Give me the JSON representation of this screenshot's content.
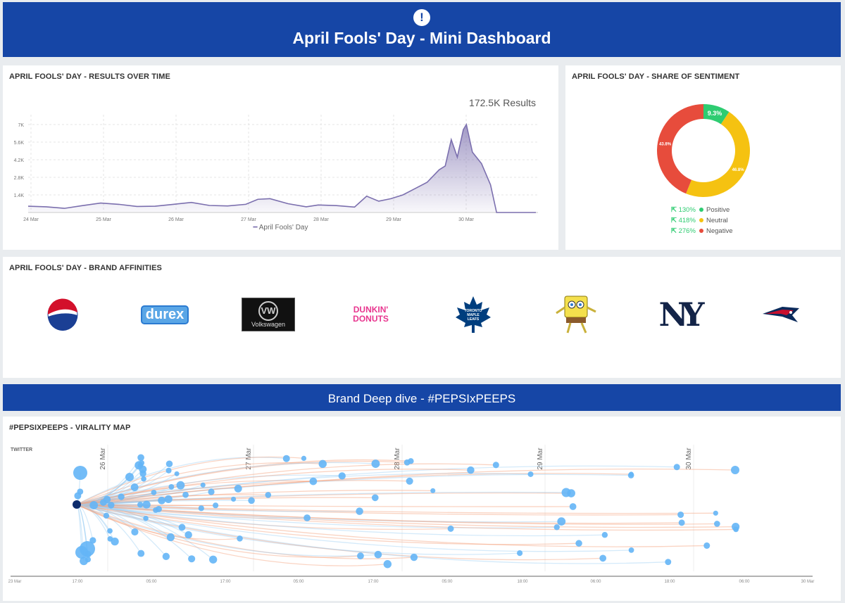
{
  "header": {
    "title": "April Fools' Day - Mini Dashboard",
    "icon": "exclamation-icon"
  },
  "results_panel": {
    "title": "APRIL FOOLS' DAY - RESULTS OVER TIME",
    "total": "172.5K Results",
    "legend": "April Fools' Day"
  },
  "chart_data": [
    {
      "type": "area",
      "title": "APRIL FOOLS' DAY - RESULTS OVER TIME",
      "y_ticks": [
        "1.4K",
        "2.8K",
        "4.2K",
        "5.6K",
        "7K"
      ],
      "x_ticks": [
        "24 Mar",
        "25 Mar",
        "26 Mar",
        "27 Mar",
        "28 Mar",
        "29 Mar",
        "30 Mar"
      ],
      "ylim": [
        0,
        7000
      ],
      "grid": true,
      "legend_position": "bottom",
      "color": "#7b6fae",
      "series": [
        {
          "name": "April Fools' Day",
          "points": [
            [
              "24 Mar 00:00",
              500
            ],
            [
              "24 Mar 06:00",
              450
            ],
            [
              "24 Mar 12:00",
              330
            ],
            [
              "24 Mar 18:00",
              550
            ],
            [
              "25 Mar 00:00",
              750
            ],
            [
              "25 Mar 06:00",
              650
            ],
            [
              "25 Mar 12:00",
              480
            ],
            [
              "25 Mar 18:00",
              500
            ],
            [
              "26 Mar 00:00",
              650
            ],
            [
              "26 Mar 06:00",
              800
            ],
            [
              "26 Mar 12:00",
              560
            ],
            [
              "26 Mar 18:00",
              520
            ],
            [
              "27 Mar 00:00",
              650
            ],
            [
              "27 Mar 04:00",
              1050
            ],
            [
              "27 Mar 08:00",
              1100
            ],
            [
              "27 Mar 14:00",
              700
            ],
            [
              "27 Mar 20:00",
              450
            ],
            [
              "28 Mar 00:00",
              600
            ],
            [
              "28 Mar 06:00",
              550
            ],
            [
              "28 Mar 12:00",
              430
            ],
            [
              "28 Mar 16:00",
              1300
            ],
            [
              "28 Mar 20:00",
              900
            ],
            [
              "29 Mar 00:00",
              1100
            ],
            [
              "29 Mar 04:00",
              1400
            ],
            [
              "29 Mar 08:00",
              1900
            ],
            [
              "29 Mar 12:00",
              2400
            ],
            [
              "29 Mar 16:00",
              3400
            ],
            [
              "29 Mar 18:00",
              3700
            ],
            [
              "29 Mar 20:00",
              5800
            ],
            [
              "29 Mar 22:00",
              4400
            ],
            [
              "30 Mar 00:00",
              6600
            ],
            [
              "30 Mar 01:00",
              7000
            ],
            [
              "30 Mar 03:00",
              4800
            ],
            [
              "30 Mar 06:00",
              3900
            ],
            [
              "30 Mar 09:00",
              2200
            ],
            [
              "30 Mar 11:00",
              0
            ],
            [
              "30 Mar 18:00",
              0
            ],
            [
              "31 Mar 00:00",
              0
            ]
          ]
        }
      ]
    },
    {
      "type": "pie",
      "title": "APRIL FOOLS' DAY - SHARE OF SENTIMENT",
      "slices": [
        {
          "label": "Positive",
          "value": 9.3,
          "display": "9.3%",
          "change": "130%",
          "color": "#2ecc71"
        },
        {
          "label": "Neutral",
          "value": 46.8,
          "display": "46.8%",
          "change": "418%",
          "color": "#f5c211"
        },
        {
          "label": "Negative",
          "value": 43.8,
          "display": "43.8%",
          "change": "276%",
          "color": "#e74c3c"
        }
      ]
    }
  ],
  "sentiment_panel": {
    "title": "APRIL FOOLS' DAY - SHARE OF SENTIMENT",
    "change_icon": "arrow-up-left-icon"
  },
  "brands_panel": {
    "title": "APRIL FOOLS' DAY - BRAND AFFINITIES",
    "brands": [
      "Pepsi",
      "durex",
      "Volkswagen",
      "DUNKIN' DONUTS",
      "Toronto Maple Leafs",
      "SpongeBob",
      "NY",
      "Patriots"
    ]
  },
  "deep_dive": {
    "title": "Brand Deep dive - #PEPSIxPEEPS"
  },
  "virality": {
    "title": "#PEPSIXPEEPS - VIRALITY MAP",
    "channel": "TWITTER",
    "date_markers": [
      "26 Mar",
      "27 Mar",
      "28 Mar",
      "29 Mar",
      "30 Mar"
    ],
    "x_ticks": [
      "23 Mar",
      "17:00",
      "05:00",
      "17:00",
      "05:00",
      "17:00",
      "05:00",
      "18:00",
      "06:00",
      "18:00",
      "06:00",
      "30 Mar"
    ],
    "node_color": "#64b5f6",
    "link_color": "#f5a07a"
  }
}
